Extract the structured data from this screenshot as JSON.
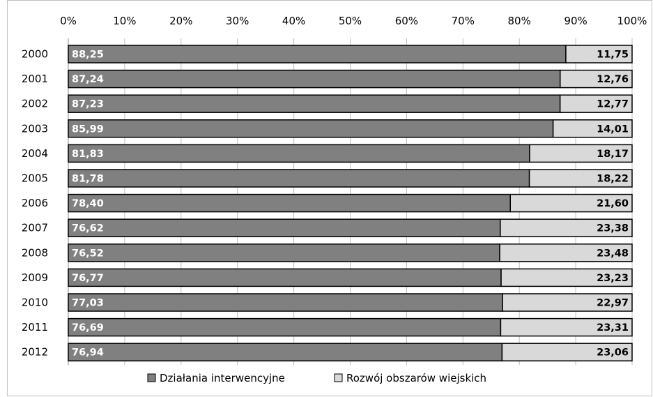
{
  "chart_data": {
    "type": "bar",
    "orientation": "horizontal",
    "stacked": "percent",
    "categories": [
      "2000",
      "2001",
      "2002",
      "2003",
      "2004",
      "2005",
      "2006",
      "2007",
      "2008",
      "2009",
      "2010",
      "2011",
      "2012"
    ],
    "series": [
      {
        "name": "Działania interwencyjne",
        "color": "#808080",
        "values": [
          88.25,
          87.24,
          87.23,
          85.99,
          81.83,
          81.78,
          78.4,
          76.62,
          76.52,
          76.77,
          77.03,
          76.69,
          76.94
        ],
        "labels": [
          "88,25",
          "87,24",
          "87,23",
          "85,99",
          "81,83",
          "81,78",
          "78,40",
          "76,62",
          "76,52",
          "76,77",
          "77,03",
          "76,69",
          "76,94"
        ]
      },
      {
        "name": "Rozwój obszarów wiejskich",
        "color": "#d9d9d9",
        "values": [
          11.75,
          12.76,
          12.77,
          14.01,
          18.17,
          18.22,
          21.6,
          23.38,
          23.48,
          23.23,
          22.97,
          23.31,
          23.06
        ],
        "labels": [
          "11,75",
          "12,76",
          "12,77",
          "14,01",
          "18,17",
          "18,22",
          "21,60",
          "23,38",
          "23,48",
          "23,23",
          "22,97",
          "23,31",
          "23,06"
        ]
      }
    ],
    "x_ticks": [
      "0%",
      "10%",
      "20%",
      "30%",
      "40%",
      "50%",
      "60%",
      "70%",
      "80%",
      "90%",
      "100%"
    ],
    "xlim": [
      0,
      100
    ],
    "title": "",
    "xlabel": "",
    "ylabel": "",
    "grid": true,
    "legend_position": "bottom"
  }
}
